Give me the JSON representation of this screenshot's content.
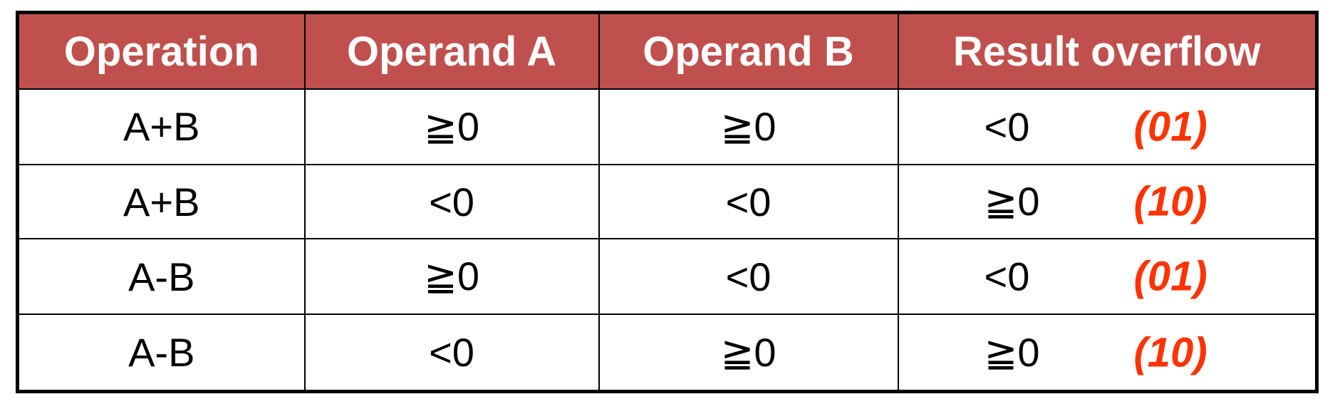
{
  "table": {
    "headers": [
      "Operation",
      "Operand A",
      "Operand B",
      "Result overflow"
    ],
    "rows": [
      {
        "operation": "A+B",
        "operand_a": "≧0",
        "operand_b": "≧0",
        "result": "<0",
        "code": "(01)"
      },
      {
        "operation": "A+B",
        "operand_a": "<0",
        "operand_b": "<0",
        "result": "≧0",
        "code": "(10)"
      },
      {
        "operation": "A-B",
        "operand_a": "≧0",
        "operand_b": "<0",
        "result": "<0",
        "code": "(01)"
      },
      {
        "operation": "A-B",
        "operand_a": "<0",
        "operand_b": "≧0",
        "result": "≧0",
        "code": "(10)"
      }
    ]
  },
  "colors": {
    "header_bg": "#c0504d",
    "header_text": "#ffffff",
    "code_text": "#ff3300",
    "border": "#000000"
  }
}
